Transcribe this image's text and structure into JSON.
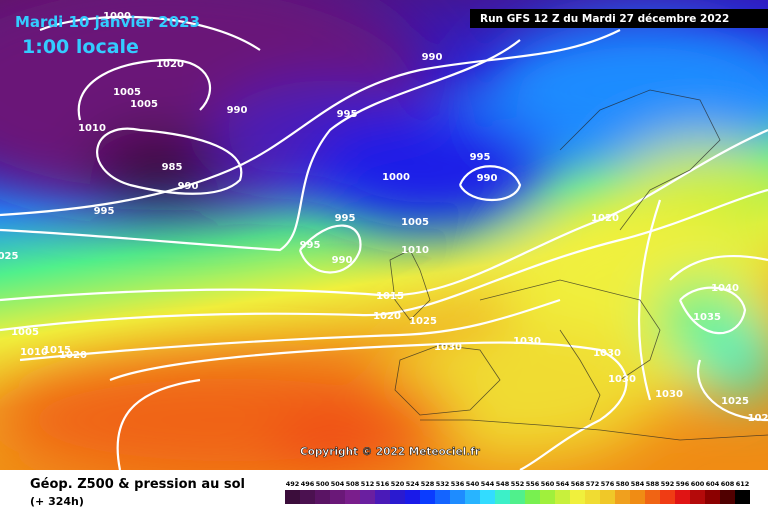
{
  "header": {
    "title": "Mardi 10 janvier 2023",
    "time": "1:00 locale",
    "run": "Run GFS 12 Z du Mardi 27 décembre 2022",
    "copyright": "Copyright © 2022 Meteociel.fr"
  },
  "legend": {
    "title": "Géop. Z500 & pression au sol",
    "lead": "(+ 324h)",
    "scale": [
      492,
      496,
      500,
      504,
      508,
      512,
      516,
      520,
      524,
      528,
      532,
      536,
      540,
      544,
      548,
      552,
      556,
      560,
      564,
      568,
      572,
      576,
      580,
      584,
      588,
      592,
      596,
      600,
      604,
      608,
      612
    ],
    "colors": [
      "#3b0d3b",
      "#4b1150",
      "#5a1464",
      "#6a1878",
      "#7a1e8c",
      "#6a1fa0",
      "#4a1ab8",
      "#2a1ad0",
      "#1a1ae8",
      "#0a3cff",
      "#1464ff",
      "#1e8cff",
      "#28b4ff",
      "#32dcff",
      "#3cf0c8",
      "#50f08c",
      "#78f050",
      "#a0f03c",
      "#c8f03c",
      "#f0f03c",
      "#f0dc32",
      "#f0c828",
      "#f0a01e",
      "#f08c14",
      "#f06414",
      "#f03c14",
      "#e01414",
      "#b40a0a",
      "#8c0000",
      "#500000",
      "#000000"
    ]
  },
  "isobar_labels": [
    "1000",
    "1020",
    "1005",
    "1005",
    "1010",
    "990",
    "985",
    "990",
    "995",
    "990",
    "995",
    "1000",
    "995",
    "990",
    "995",
    "1005",
    "995",
    "990",
    "1010",
    "1015",
    "1020",
    "1025",
    "1030",
    "1030",
    "1030",
    "1030",
    "1030",
    "1020",
    "1040",
    "1035",
    "1025",
    "102",
    "025",
    "1005",
    "1015",
    "1010",
    "1020"
  ]
}
